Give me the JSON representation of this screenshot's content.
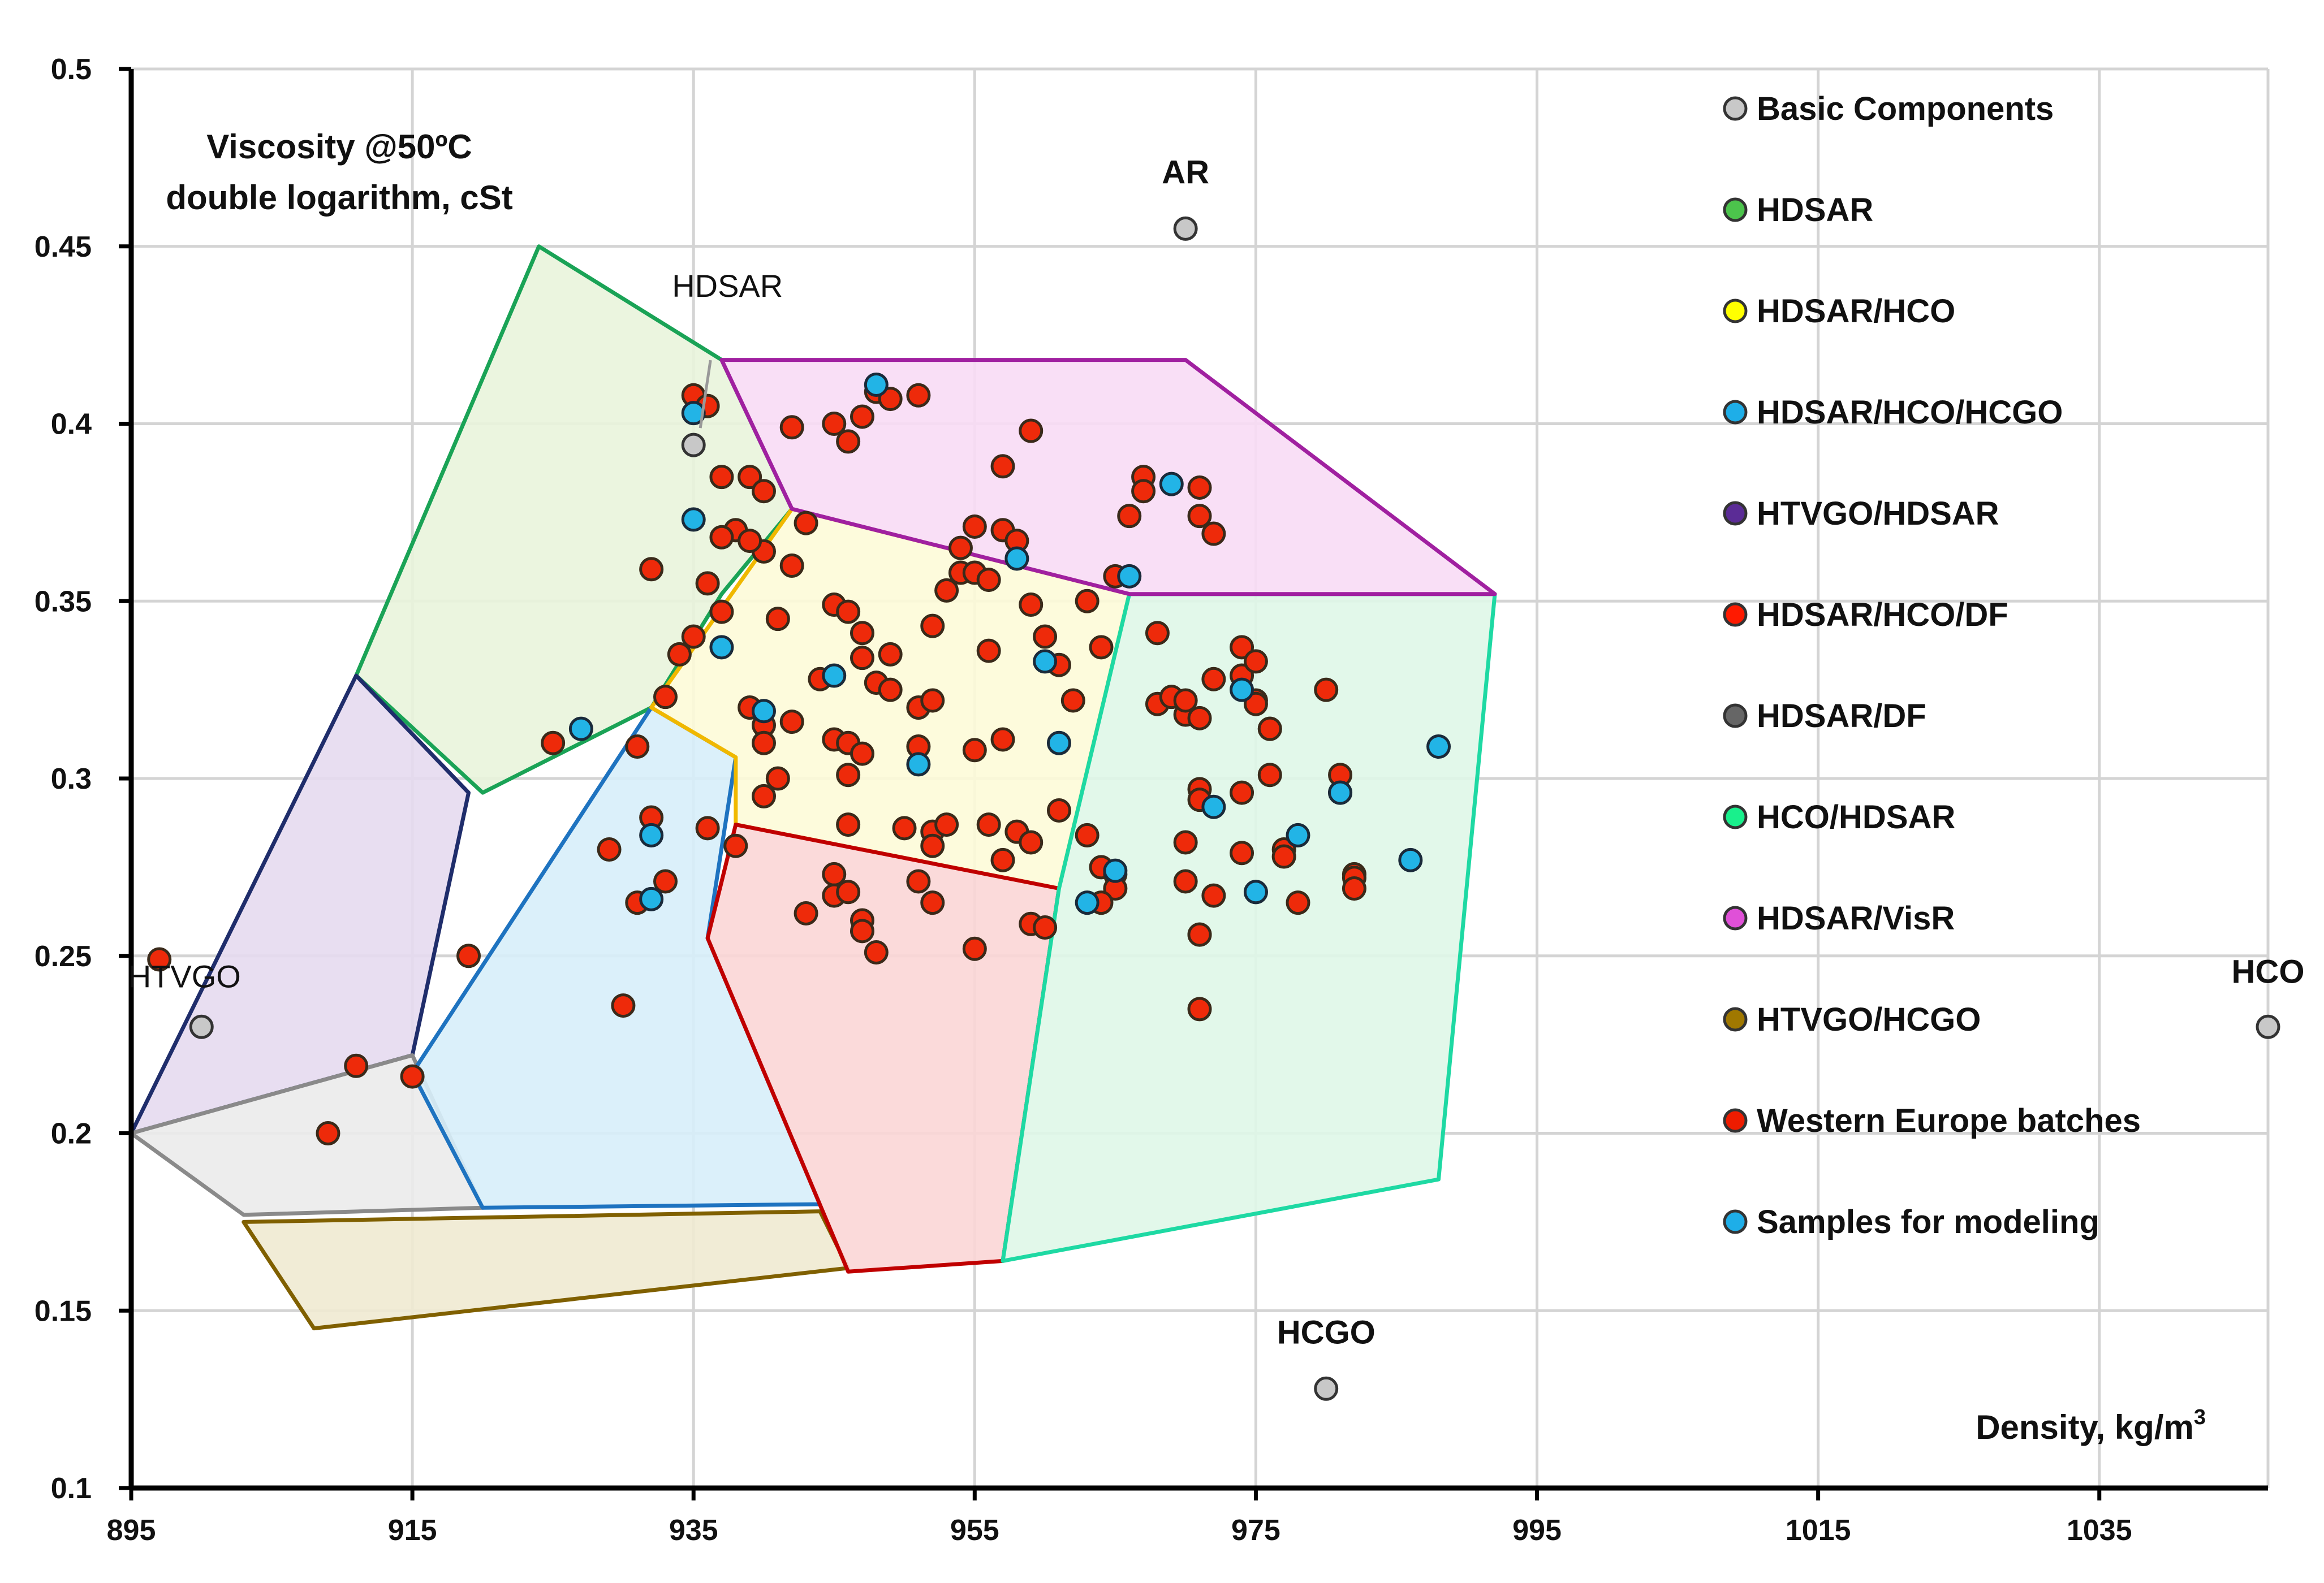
{
  "chart_data": {
    "type": "scatter",
    "title": "",
    "ylabel_line1": "Viscosity @50ºC",
    "ylabel_line2": "double logarithm, cSt",
    "xlabel": "Density, kg/m",
    "xlabel_sup": "3",
    "xlim": [
      895,
      1047
    ],
    "ylim": [
      0.1,
      0.5
    ],
    "xticks": [
      "895",
      "915",
      "935",
      "955",
      "975",
      "995",
      "1015",
      "1035"
    ],
    "yticks": [
      "0.1",
      "0.15",
      "0.2",
      "0.25",
      "0.3",
      "0.35",
      "0.4",
      "0.45",
      "0.5"
    ],
    "grid": true,
    "legend_position": "top-right",
    "legend": [
      {
        "label": "Basic Components",
        "color": "#c8c8c8"
      },
      {
        "label": "HDSAR",
        "color": "#4cc44c"
      },
      {
        "label": "HDSAR/HCO",
        "color": "#ffff00"
      },
      {
        "label": "HDSAR/HCO/HCGO",
        "color": "#1eaee8"
      },
      {
        "label": "HTVGO/HDSAR",
        "color": "#5b2c96"
      },
      {
        "label": "HDSAR/HCO/DF",
        "color": "#ff1a00"
      },
      {
        "label": "HDSAR/DF",
        "color": "#666666"
      },
      {
        "label": "HCO/HDSAR",
        "color": "#19f08c"
      },
      {
        "label": "HDSAR/VisR",
        "color": "#e050d8"
      },
      {
        "label": "HTVGO/HCGO",
        "color": "#a07800"
      },
      {
        "label": "Western Europe batches",
        "color": "#ee1c00"
      },
      {
        "label": "Samples for modeling",
        "color": "#1eaee8"
      }
    ],
    "regions": [
      {
        "name": "HDSAR",
        "fill": "#e9f4dc",
        "stroke": "#1aa356",
        "points": [
          [
            911,
            0.329
          ],
          [
            924,
            0.45
          ],
          [
            937,
            0.418
          ],
          [
            942,
            0.376
          ],
          [
            937,
            0.352
          ],
          [
            932,
            0.32
          ],
          [
            920,
            0.296
          ]
        ]
      },
      {
        "name": "HTVGO/HDSAR",
        "fill": "#e6daef",
        "stroke": "#1f2d6b",
        "points": [
          [
            895,
            0.2
          ],
          [
            915,
            0.222
          ],
          [
            919,
            0.296
          ],
          [
            911,
            0.329
          ]
        ]
      },
      {
        "name": "HDSAR/DF",
        "fill": "#ebebeb",
        "stroke": "#8a8a8a",
        "points": [
          [
            895,
            0.2
          ],
          [
            915,
            0.222
          ],
          [
            920,
            0.179
          ],
          [
            903,
            0.177
          ]
        ]
      },
      {
        "name": "HTVGO/HCGO",
        "fill": "#f0ead2",
        "stroke": "#806000",
        "points": [
          [
            903,
            0.175
          ],
          [
            944,
            0.178
          ],
          [
            946,
            0.162
          ],
          [
            908,
            0.145
          ]
        ]
      },
      {
        "name": "HDSAR/HCO/HCGO",
        "fill": "#d7eef9",
        "stroke": "#1e73c0",
        "points": [
          [
            915,
            0.217
          ],
          [
            932,
            0.32
          ],
          [
            938,
            0.306
          ],
          [
            936,
            0.255
          ],
          [
            944,
            0.18
          ],
          [
            920,
            0.179
          ]
        ]
      },
      {
        "name": "HDSAR/HCO",
        "fill": "#fdfbd8",
        "stroke": "#f0b800",
        "points": [
          [
            932,
            0.32
          ],
          [
            942,
            0.376
          ],
          [
            966,
            0.352
          ],
          [
            961,
            0.269
          ],
          [
            938,
            0.287
          ],
          [
            938,
            0.306
          ]
        ]
      },
      {
        "name": "HDSAR/HCO/DF",
        "fill": "#fbd6d6",
        "stroke": "#c00000",
        "points": [
          [
            938,
            0.287
          ],
          [
            961,
            0.269
          ],
          [
            957,
            0.164
          ],
          [
            946,
            0.161
          ],
          [
            936,
            0.255
          ]
        ]
      },
      {
        "name": "HCO/HDSAR",
        "fill": "#dff7e8",
        "stroke": "#1ed9a3",
        "points": [
          [
            966,
            0.352
          ],
          [
            992,
            0.352
          ],
          [
            988,
            0.187
          ],
          [
            957,
            0.164
          ],
          [
            961,
            0.269
          ]
        ]
      },
      {
        "name": "HDSAR/VisR",
        "fill": "#f8dcf5",
        "stroke": "#a020a0",
        "points": [
          [
            937,
            0.418
          ],
          [
            970,
            0.418
          ],
          [
            992,
            0.352
          ],
          [
            966,
            0.352
          ],
          [
            942,
            0.376
          ]
        ]
      }
    ],
    "basic_components": [
      {
        "label": "AR",
        "x": 970,
        "y": 0.455
      },
      {
        "label": "HDSAR",
        "x": 935,
        "y": 0.394
      },
      {
        "label": "HTVGO",
        "x": 900,
        "y": 0.23
      },
      {
        "label": "HCO",
        "x": 1047,
        "y": 0.23
      },
      {
        "label": "HCGO",
        "x": 980,
        "y": 0.128
      }
    ],
    "western_europe_batches": [
      [
        935,
        0.408
      ],
      [
        936,
        0.405
      ],
      [
        942,
        0.399
      ],
      [
        945,
        0.4
      ],
      [
        946,
        0.395
      ],
      [
        948,
        0.409
      ],
      [
        951,
        0.408
      ],
      [
        947,
        0.402
      ],
      [
        949,
        0.407
      ],
      [
        959,
        0.398
      ],
      [
        957,
        0.388
      ],
      [
        937,
        0.385
      ],
      [
        939,
        0.385
      ],
      [
        940,
        0.381
      ],
      [
        938,
        0.37
      ],
      [
        940,
        0.364
      ],
      [
        942,
        0.36
      ],
      [
        937,
        0.368
      ],
      [
        939,
        0.367
      ],
      [
        932,
        0.359
      ],
      [
        936,
        0.355
      ],
      [
        943,
        0.372
      ],
      [
        941,
        0.345
      ],
      [
        937,
        0.347
      ],
      [
        935,
        0.34
      ],
      [
        934,
        0.335
      ],
      [
        933,
        0.323
      ],
      [
        931,
        0.309
      ],
      [
        925,
        0.31
      ],
      [
        939,
        0.32
      ],
      [
        940,
        0.315
      ],
      [
        942,
        0.316
      ],
      [
        940,
        0.31
      ],
      [
        941,
        0.3
      ],
      [
        940,
        0.295
      ],
      [
        945,
        0.349
      ],
      [
        946,
        0.347
      ],
      [
        947,
        0.341
      ],
      [
        947,
        0.334
      ],
      [
        949,
        0.335
      ],
      [
        952,
        0.343
      ],
      [
        954,
        0.358
      ],
      [
        955,
        0.371
      ],
      [
        955,
        0.358
      ],
      [
        957,
        0.37
      ],
      [
        958,
        0.367
      ],
      [
        954,
        0.365
      ],
      [
        956,
        0.356
      ],
      [
        953,
        0.353
      ],
      [
        956,
        0.336
      ],
      [
        959,
        0.349
      ],
      [
        960,
        0.34
      ],
      [
        961,
        0.332
      ],
      [
        948,
        0.327
      ],
      [
        949,
        0.325
      ],
      [
        951,
        0.32
      ],
      [
        952,
        0.322
      ],
      [
        945,
        0.311
      ],
      [
        946,
        0.31
      ],
      [
        947,
        0.307
      ],
      [
        946,
        0.301
      ],
      [
        951,
        0.309
      ],
      [
        955,
        0.308
      ],
      [
        957,
        0.311
      ],
      [
        944,
        0.328
      ],
      [
        946,
        0.287
      ],
      [
        950,
        0.286
      ],
      [
        952,
        0.285
      ],
      [
        953,
        0.287
      ],
      [
        952,
        0.281
      ],
      [
        956,
        0.287
      ],
      [
        958,
        0.285
      ],
      [
        957,
        0.277
      ],
      [
        959,
        0.282
      ],
      [
        961,
        0.291
      ],
      [
        962,
        0.322
      ],
      [
        936,
        0.286
      ],
      [
        938,
        0.281
      ],
      [
        932,
        0.289
      ],
      [
        931,
        0.265
      ],
      [
        933,
        0.271
      ],
      [
        929,
        0.28
      ],
      [
        930,
        0.236
      ],
      [
        945,
        0.273
      ],
      [
        945,
        0.267
      ],
      [
        946,
        0.268
      ],
      [
        943,
        0.262
      ],
      [
        947,
        0.26
      ],
      [
        947,
        0.257
      ],
      [
        948,
        0.251
      ],
      [
        951,
        0.271
      ],
      [
        952,
        0.265
      ],
      [
        955,
        0.252
      ],
      [
        959,
        0.259
      ],
      [
        960,
        0.258
      ],
      [
        963,
        0.284
      ],
      [
        964,
        0.275
      ],
      [
        965,
        0.273
      ],
      [
        965,
        0.269
      ],
      [
        964,
        0.265
      ],
      [
        964,
        0.337
      ],
      [
        963,
        0.35
      ],
      [
        965,
        0.357
      ],
      [
        966,
        0.374
      ],
      [
        967,
        0.385
      ],
      [
        967,
        0.381
      ],
      [
        971,
        0.382
      ],
      [
        971,
        0.374
      ],
      [
        972,
        0.369
      ],
      [
        968,
        0.341
      ],
      [
        968,
        0.321
      ],
      [
        969,
        0.323
      ],
      [
        970,
        0.318
      ],
      [
        970,
        0.322
      ],
      [
        971,
        0.317
      ],
      [
        972,
        0.328
      ],
      [
        974,
        0.337
      ],
      [
        974,
        0.329
      ],
      [
        975,
        0.333
      ],
      [
        975,
        0.322
      ],
      [
        975,
        0.321
      ],
      [
        971,
        0.297
      ],
      [
        971,
        0.294
      ],
      [
        974,
        0.296
      ],
      [
        972,
        0.267
      ],
      [
        970,
        0.282
      ],
      [
        974,
        0.279
      ],
      [
        976,
        0.314
      ],
      [
        976,
        0.314
      ],
      [
        976,
        0.301
      ],
      [
        977,
        0.28
      ],
      [
        977,
        0.278
      ],
      [
        978,
        0.265
      ],
      [
        975,
        0.268
      ],
      [
        980,
        0.325
      ],
      [
        981,
        0.301
      ],
      [
        981,
        0.296
      ],
      [
        982,
        0.273
      ],
      [
        982,
        0.272
      ],
      [
        982,
        0.269
      ],
      [
        970,
        0.271
      ],
      [
        971,
        0.256
      ],
      [
        971,
        0.256
      ],
      [
        971,
        0.235
      ],
      [
        897,
        0.249
      ],
      [
        911,
        0.219
      ],
      [
        909,
        0.2
      ],
      [
        915,
        0.216
      ],
      [
        919,
        0.25
      ]
    ],
    "samples_for_modeling": [
      [
        935,
        0.403
      ],
      [
        935,
        0.373
      ],
      [
        937,
        0.337
      ],
      [
        940,
        0.319
      ],
      [
        927,
        0.314
      ],
      [
        932,
        0.284
      ],
      [
        932,
        0.266
      ],
      [
        945,
        0.329
      ],
      [
        951,
        0.304
      ],
      [
        960,
        0.333
      ],
      [
        961,
        0.31
      ],
      [
        948,
        0.411
      ],
      [
        969,
        0.383
      ],
      [
        966,
        0.357
      ],
      [
        974,
        0.325
      ],
      [
        972,
        0.292
      ],
      [
        965,
        0.274
      ],
      [
        963,
        0.265
      ],
      [
        975,
        0.268
      ],
      [
        978,
        0.284
      ],
      [
        981,
        0.296
      ],
      [
        986,
        0.277
      ],
      [
        988,
        0.309
      ],
      [
        958,
        0.362
      ]
    ]
  }
}
